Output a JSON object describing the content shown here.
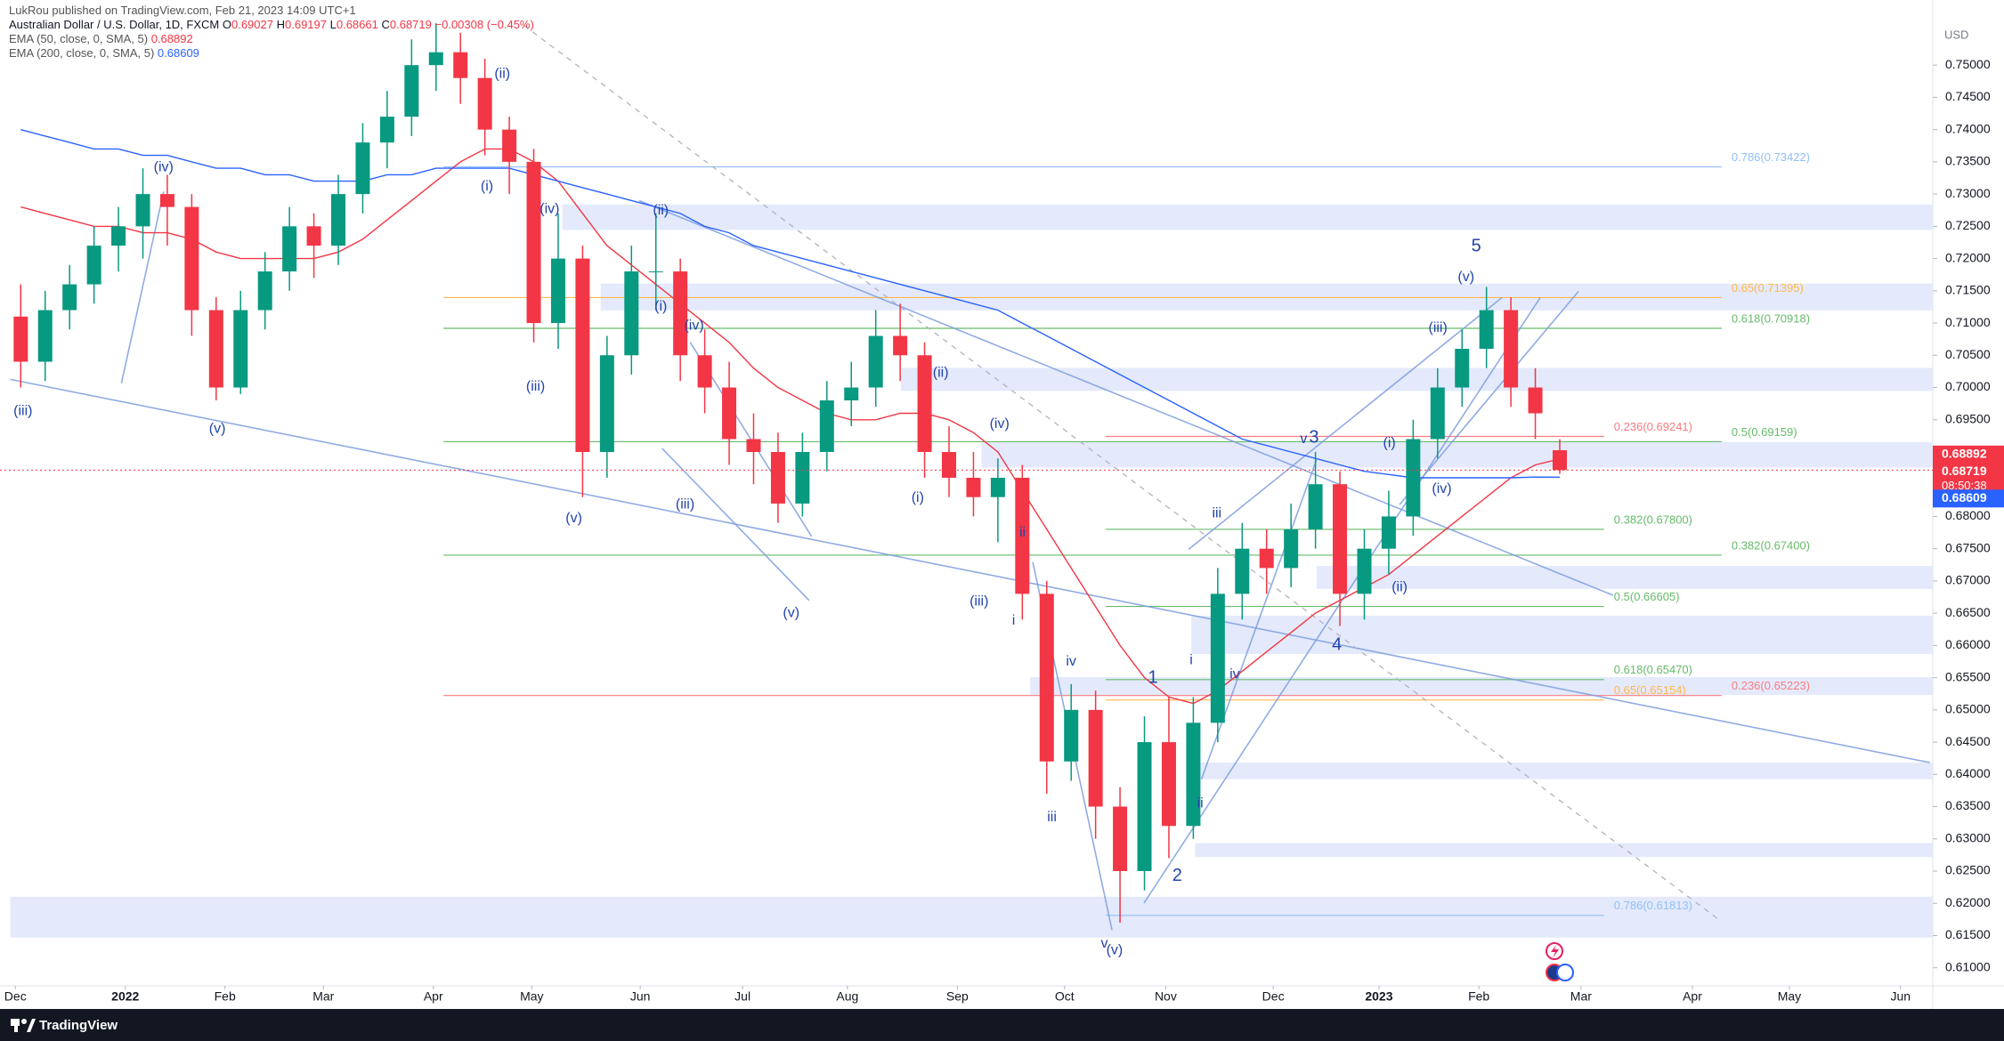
{
  "chart_data": {
    "type": "candlestick",
    "publisher": "LukRou published on TradingView.com, Feb 21, 2023 14:09 UTC+1",
    "title": "Australian Dollar / U.S. Dollar, 1D, FXCM",
    "ohlc_letters": [
      "O",
      "H",
      "L",
      "C"
    ],
    "change": "−0.00308 (−0.45%)",
    "currency": "USD",
    "countdown": "08:50:38",
    "footer": "TradingView",
    "up_color": "#089981",
    "down_color": "#f23645",
    "categories": [
      null,
      null,
      null,
      null,
      null,
      null,
      null,
      null,
      null,
      null,
      null,
      null,
      null,
      null,
      null,
      null,
      null,
      null,
      null,
      null,
      null,
      null,
      null,
      null,
      null,
      null,
      null,
      null,
      null,
      null,
      null,
      null,
      null,
      null,
      null,
      null,
      null,
      null,
      null,
      null,
      null,
      null,
      null,
      null,
      null,
      null,
      null,
      null,
      null,
      null,
      null,
      null,
      null,
      null,
      null,
      null,
      null,
      null,
      null,
      null,
      null,
      null,
      null,
      null
    ],
    "open": [
      0.711,
      0.704,
      0.712,
      0.716,
      0.722,
      0.725,
      0.73,
      0.728,
      0.712,
      0.7,
      0.712,
      0.718,
      0.725,
      0.722,
      0.73,
      0.738,
      0.742,
      0.75,
      0.752,
      0.748,
      0.74,
      0.735,
      0.71,
      0.72,
      0.69,
      0.705,
      0.718,
      0.718,
      0.705,
      0.7,
      0.692,
      0.69,
      0.682,
      0.69,
      0.698,
      0.7,
      0.708,
      0.705,
      0.69,
      0.686,
      0.683,
      0.686,
      0.668,
      0.642,
      0.65,
      0.635,
      0.625,
      0.645,
      0.632,
      0.648,
      0.668,
      0.675,
      0.672,
      0.678,
      0.685,
      0.668,
      0.675,
      0.68,
      0.692,
      0.7,
      0.706,
      0.712,
      0.7,
      0.69027
    ],
    "high": [
      0.716,
      0.715,
      0.719,
      0.725,
      0.728,
      0.734,
      0.733,
      0.73,
      0.714,
      0.715,
      0.721,
      0.728,
      0.727,
      0.733,
      0.741,
      0.746,
      0.754,
      0.7565,
      0.755,
      0.751,
      0.742,
      0.737,
      0.727,
      0.722,
      0.708,
      0.722,
      0.727,
      0.72,
      0.709,
      0.704,
      0.696,
      0.693,
      0.693,
      0.701,
      0.704,
      0.712,
      0.713,
      0.707,
      0.694,
      0.69,
      0.689,
      0.688,
      0.67,
      0.654,
      0.653,
      0.638,
      0.649,
      0.652,
      0.652,
      0.672,
      0.679,
      0.678,
      0.682,
      0.69,
      0.687,
      0.678,
      0.684,
      0.695,
      0.703,
      0.709,
      0.7156,
      0.714,
      0.703,
      0.69197
    ],
    "low": [
      0.7,
      0.701,
      0.709,
      0.713,
      0.718,
      0.72,
      0.722,
      0.708,
      0.698,
      0.699,
      0.709,
      0.715,
      0.717,
      0.719,
      0.727,
      0.734,
      0.739,
      0.746,
      0.744,
      0.736,
      0.73,
      0.707,
      0.706,
      0.683,
      0.686,
      0.702,
      0.712,
      0.701,
      0.696,
      0.688,
      0.685,
      0.679,
      0.68,
      0.687,
      0.694,
      0.697,
      0.701,
      0.686,
      0.683,
      0.68,
      0.676,
      0.664,
      0.637,
      0.639,
      0.63,
      0.617,
      0.622,
      0.627,
      0.63,
      0.645,
      0.664,
      0.668,
      0.669,
      0.675,
      0.663,
      0.664,
      0.671,
      0.677,
      0.689,
      0.697,
      0.703,
      0.697,
      0.692,
      0.68661
    ],
    "close": [
      0.704,
      0.712,
      0.716,
      0.722,
      0.725,
      0.73,
      0.728,
      0.712,
      0.7,
      0.712,
      0.718,
      0.725,
      0.722,
      0.73,
      0.738,
      0.742,
      0.75,
      0.752,
      0.748,
      0.74,
      0.735,
      0.71,
      0.72,
      0.69,
      0.705,
      0.718,
      0.718,
      0.705,
      0.7,
      0.692,
      0.69,
      0.682,
      0.69,
      0.698,
      0.7,
      0.708,
      0.705,
      0.69,
      0.686,
      0.683,
      0.686,
      0.668,
      0.642,
      0.65,
      0.635,
      0.625,
      0.645,
      0.632,
      0.648,
      0.668,
      0.675,
      0.672,
      0.678,
      0.685,
      0.668,
      0.675,
      0.68,
      0.692,
      0.7,
      0.706,
      0.712,
      0.7,
      0.696,
      0.68719
    ],
    "lines": [
      {
        "name": "EMA (50, close, 0, SMA, 5)",
        "color": "#f23645",
        "values": [
          0.728,
          0.727,
          0.726,
          0.725,
          0.725,
          0.724,
          0.724,
          0.723,
          0.721,
          0.72,
          0.72,
          0.72,
          0.72,
          0.721,
          0.723,
          0.726,
          0.729,
          0.732,
          0.735,
          0.737,
          0.737,
          0.735,
          0.732,
          0.727,
          0.722,
          0.719,
          0.716,
          0.713,
          0.71,
          0.707,
          0.703,
          0.7,
          0.698,
          0.696,
          0.695,
          0.695,
          0.696,
          0.696,
          0.695,
          0.693,
          0.69,
          0.684,
          0.678,
          0.672,
          0.666,
          0.66,
          0.655,
          0.652,
          0.651,
          0.653,
          0.656,
          0.659,
          0.662,
          0.665,
          0.667,
          0.669,
          0.671,
          0.674,
          0.677,
          0.68,
          0.683,
          0.686,
          0.688,
          0.68892
        ]
      },
      {
        "name": "EMA (200, close, 0, SMA, 5)",
        "color": "#2962ff",
        "values": [
          0.74,
          0.739,
          0.738,
          0.737,
          0.737,
          0.736,
          0.736,
          0.735,
          0.734,
          0.734,
          0.733,
          0.733,
          0.732,
          0.732,
          0.732,
          0.733,
          0.733,
          0.734,
          0.734,
          0.734,
          0.734,
          0.733,
          0.732,
          0.731,
          0.73,
          0.729,
          0.728,
          0.727,
          0.725,
          0.724,
          0.722,
          0.721,
          0.72,
          0.719,
          0.718,
          0.717,
          0.716,
          0.715,
          0.714,
          0.713,
          0.712,
          0.71,
          0.708,
          0.706,
          0.704,
          0.702,
          0.7,
          0.698,
          0.696,
          0.694,
          0.692,
          0.691,
          0.69,
          0.689,
          0.688,
          0.687,
          0.6865,
          0.686,
          0.686,
          0.686,
          0.686,
          0.686,
          0.6861,
          0.68609
        ]
      }
    ],
    "xlim": [
      -0.849,
      78.27
    ],
    "ylim": [
      0.6072,
      0.7601
    ],
    "xticks": [
      {
        "value": -0.22,
        "label": "Dec"
      },
      {
        "value": 4.28,
        "label": "2022"
      },
      {
        "value": 8.36,
        "label": "Feb"
      },
      {
        "value": 12.39,
        "label": "Mar"
      },
      {
        "value": 16.89,
        "label": "Apr"
      },
      {
        "value": 20.92,
        "label": "May"
      },
      {
        "value": 25.36,
        "label": "Jun"
      },
      {
        "value": 29.55,
        "label": "Jul"
      },
      {
        "value": 33.84,
        "label": "Aug"
      },
      {
        "value": 38.34,
        "label": "Sep"
      },
      {
        "value": 42.73,
        "label": "Oct"
      },
      {
        "value": 46.87,
        "label": "Nov"
      },
      {
        "value": 51.27,
        "label": "Dec"
      },
      {
        "value": 55.6,
        "label": "2023"
      },
      {
        "value": 59.69,
        "label": "Feb"
      },
      {
        "value": 63.87,
        "label": "Mar"
      },
      {
        "value": 68.43,
        "label": "Apr"
      },
      {
        "value": 72.4,
        "label": "May"
      },
      {
        "value": 76.95,
        "label": "Jun"
      }
    ],
    "yticks": [
      {
        "value": 0.75,
        "label": "0.75000"
      },
      {
        "value": 0.745,
        "label": "0.74500"
      },
      {
        "value": 0.74,
        "label": "0.74000"
      },
      {
        "value": 0.735,
        "label": "0.73500"
      },
      {
        "value": 0.73,
        "label": "0.73000"
      },
      {
        "value": 0.725,
        "label": "0.72500"
      },
      {
        "value": 0.72,
        "label": "0.72000"
      },
      {
        "value": 0.715,
        "label": "0.71500"
      },
      {
        "value": 0.71,
        "label": "0.71000"
      },
      {
        "value": 0.705,
        "label": "0.70500"
      },
      {
        "value": 0.7,
        "label": "0.70000"
      },
      {
        "value": 0.695,
        "label": "0.69500"
      },
      {
        "value": 0.69,
        "label": "0.69000"
      },
      {
        "value": 0.685,
        "label": "0.68500"
      },
      {
        "value": 0.68,
        "label": "0.68000"
      },
      {
        "value": 0.675,
        "label": "0.67500"
      },
      {
        "value": 0.67,
        "label": "0.67000"
      },
      {
        "value": 0.665,
        "label": "0.66500"
      },
      {
        "value": 0.66,
        "label": "0.66000"
      },
      {
        "value": 0.655,
        "label": "0.65500"
      },
      {
        "value": 0.65,
        "label": "0.65000"
      },
      {
        "value": 0.645,
        "label": "0.64500"
      },
      {
        "value": 0.64,
        "label": "0.64000"
      },
      {
        "value": 0.635,
        "label": "0.63500"
      },
      {
        "value": 0.63,
        "label": "0.63000"
      },
      {
        "value": 0.625,
        "label": "0.62500"
      },
      {
        "value": 0.62,
        "label": "0.62000"
      },
      {
        "value": 0.615,
        "label": "0.61500"
      },
      {
        "value": 0.61,
        "label": "0.61000"
      }
    ],
    "fib_levels": [
      {
        "label": "0.786(0.73422)",
        "value": 0.73422,
        "color": "#90bff9"
      },
      {
        "label": "0.65(0.71395)",
        "value": 0.71395,
        "color": "#ffb74d"
      },
      {
        "label": "0.618(0.70918)",
        "value": 0.70918,
        "color": "#66bb6a"
      },
      {
        "label": "0.236(0.69241)",
        "value": 0.69241,
        "color": "#f77c80"
      },
      {
        "label": "0.5(0.69159)",
        "value": 0.69159,
        "color": "#66bb6a"
      },
      {
        "label": "0.382(0.67800)",
        "value": 0.678,
        "color": "#66bb6a"
      },
      {
        "label": "0.382(0.67400)",
        "value": 0.674,
        "color": "#66bb6a"
      },
      {
        "label": "0.5(0.66605)",
        "value": 0.66605,
        "color": "#66bb6a"
      },
      {
        "label": "0.618(0.65470)",
        "value": 0.6547,
        "color": "#66bb6a"
      },
      {
        "label": "0.65(0.65154)",
        "value": 0.65154,
        "color": "#ffb74d"
      },
      {
        "label": "0.236(0.65223)",
        "value": 0.65223,
        "color": "#f77c80"
      },
      {
        "label": "0.786(0.61813)",
        "value": 0.61813,
        "color": "#90bff9"
      }
    ],
    "annotations": [
      "(iii)",
      "(iv)",
      "(v)",
      "(ii)",
      "(i)",
      "(iv)",
      "(iii)",
      "(v)",
      "(ii)",
      "(i)",
      "(iv)",
      "(iii)",
      "(v)",
      "(ii)",
      "(i)",
      "(iv)",
      "(iii)",
      "ii",
      "i",
      "iv",
      "iii",
      "v",
      "(v)",
      "1",
      "2",
      "iii",
      "i",
      "ii",
      "iv",
      "v",
      "3",
      "4",
      "(i)",
      "(ii)",
      "(iii)",
      "(iv)",
      "(v)",
      "5"
    ]
  }
}
